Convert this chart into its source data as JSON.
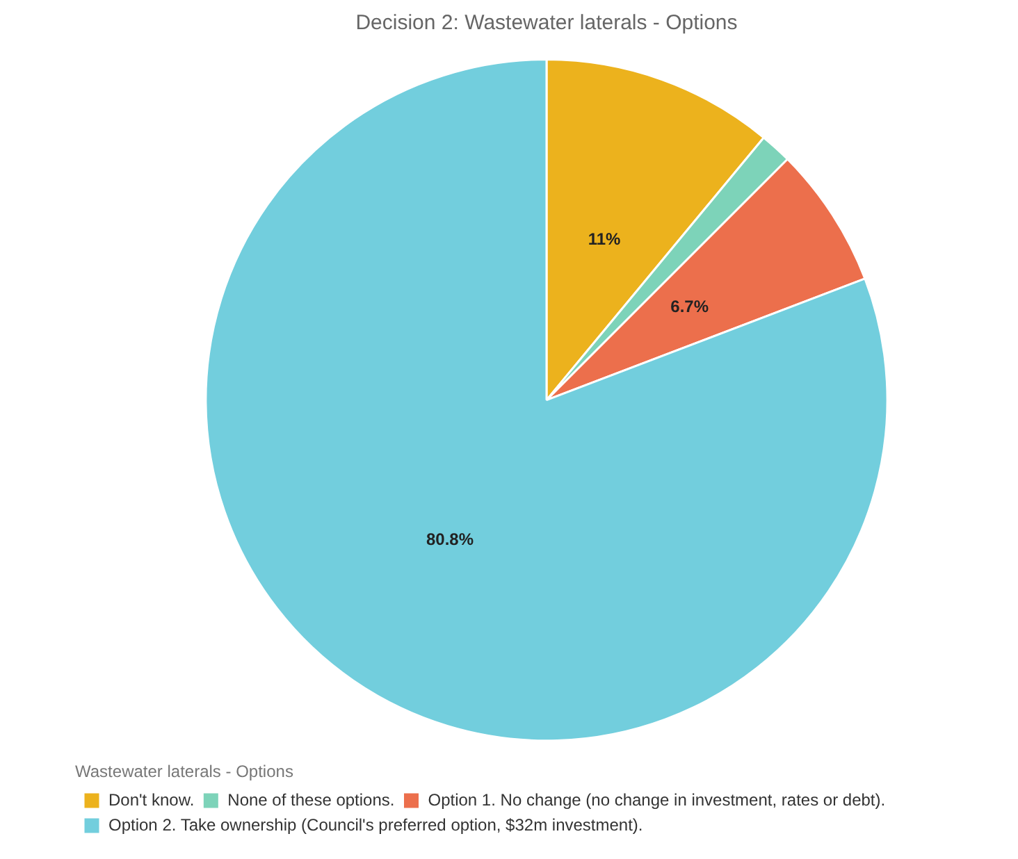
{
  "chart_data": {
    "type": "pie",
    "title": "Decision 2: Wastewater laterals - Options",
    "legend_title": "Wastewater laterals - Options",
    "categories": [
      "Don't know.",
      "None of these options.",
      "Option 1. No change (no change in investment, rates or debt).",
      "Option 2. Take ownership (Council's preferred option, $32m investment)."
    ],
    "values": [
      11,
      1.5,
      6.7,
      80.8
    ],
    "colors": [
      "#ecb21d",
      "#7dd3b9",
      "#ec6f4c",
      "#72cedd"
    ],
    "value_labels": [
      "11%",
      null,
      "6.7%",
      "80.8%"
    ],
    "legend": "bottom left"
  }
}
